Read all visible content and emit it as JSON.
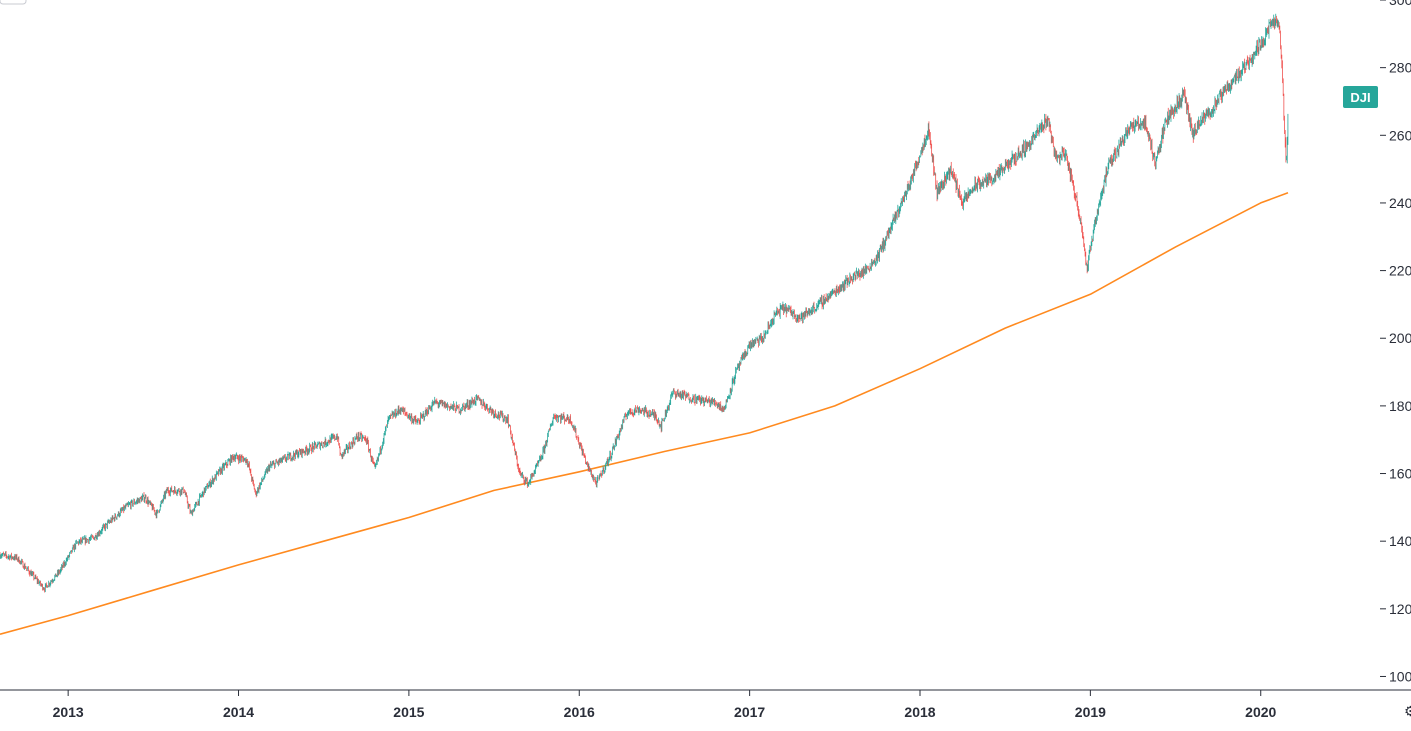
{
  "chart_data": {
    "type": "candlestick-with-line",
    "symbol_label": "DJI",
    "colors": {
      "up": "#26a69a",
      "down": "#ef5350",
      "moving_average": "#ff8a1f",
      "label_bg": "#26a69a"
    },
    "y_axis": {
      "ylim": [
        9600,
        30000
      ],
      "ticks": [
        {
          "value": 10000,
          "label": "100"
        },
        {
          "value": 12000,
          "label": "120"
        },
        {
          "value": 14000,
          "label": "140"
        },
        {
          "value": 16000,
          "label": "160"
        },
        {
          "value": 18000,
          "label": "180"
        },
        {
          "value": 20000,
          "label": "200"
        },
        {
          "value": 22000,
          "label": "220"
        },
        {
          "value": 24000,
          "label": "240"
        },
        {
          "value": 26000,
          "label": "260"
        },
        {
          "value": 28000,
          "label": "280"
        },
        {
          "value": 30000,
          "label": "300"
        }
      ]
    },
    "x_axis": {
      "xlim": [
        2012.6,
        2020.7
      ],
      "ticks": [
        {
          "value": 2013,
          "label": "2013"
        },
        {
          "value": 2014,
          "label": "2014"
        },
        {
          "value": 2015,
          "label": "2015"
        },
        {
          "value": 2016,
          "label": "2016"
        },
        {
          "value": 2017,
          "label": "2017"
        },
        {
          "value": 2018,
          "label": "2018"
        },
        {
          "value": 2019,
          "label": "2019"
        },
        {
          "value": 2020,
          "label": "2020"
        }
      ]
    },
    "price_path": [
      [
        2012.6,
        13600
      ],
      [
        2012.7,
        13500
      ],
      [
        2012.78,
        13050
      ],
      [
        2012.86,
        12600
      ],
      [
        2012.95,
        13100
      ],
      [
        2013.05,
        13950
      ],
      [
        2013.15,
        14100
      ],
      [
        2013.25,
        14600
      ],
      [
        2013.35,
        15050
      ],
      [
        2013.45,
        15300
      ],
      [
        2013.52,
        14800
      ],
      [
        2013.58,
        15500
      ],
      [
        2013.68,
        15500
      ],
      [
        2013.72,
        14800
      ],
      [
        2013.8,
        15500
      ],
      [
        2013.88,
        16000
      ],
      [
        2013.97,
        16500
      ],
      [
        2014.05,
        16400
      ],
      [
        2014.1,
        15400
      ],
      [
        2014.18,
        16200
      ],
      [
        2014.3,
        16500
      ],
      [
        2014.4,
        16700
      ],
      [
        2014.5,
        16900
      ],
      [
        2014.58,
        17100
      ],
      [
        2014.6,
        16500
      ],
      [
        2014.7,
        17100
      ],
      [
        2014.75,
        17000
      ],
      [
        2014.8,
        16100
      ],
      [
        2014.88,
        17600
      ],
      [
        2014.95,
        17900
      ],
      [
        2015.05,
        17500
      ],
      [
        2015.15,
        18100
      ],
      [
        2015.3,
        17900
      ],
      [
        2015.4,
        18200
      ],
      [
        2015.5,
        17800
      ],
      [
        2015.58,
        17600
      ],
      [
        2015.65,
        16000
      ],
      [
        2015.7,
        15700
      ],
      [
        2015.78,
        16500
      ],
      [
        2015.85,
        17700
      ],
      [
        2015.95,
        17600
      ],
      [
        2016.05,
        16200
      ],
      [
        2016.1,
        15700
      ],
      [
        2016.18,
        16500
      ],
      [
        2016.28,
        17800
      ],
      [
        2016.35,
        17900
      ],
      [
        2016.45,
        17700
      ],
      [
        2016.48,
        17400
      ],
      [
        2016.55,
        18400
      ],
      [
        2016.68,
        18200
      ],
      [
        2016.8,
        18100
      ],
      [
        2016.85,
        17900
      ],
      [
        2016.92,
        19000
      ],
      [
        2017.0,
        19800
      ],
      [
        2017.08,
        20000
      ],
      [
        2017.15,
        20700
      ],
      [
        2017.2,
        20900
      ],
      [
        2017.3,
        20600
      ],
      [
        2017.38,
        20900
      ],
      [
        2017.48,
        21300
      ],
      [
        2017.6,
        21800
      ],
      [
        2017.68,
        22000
      ],
      [
        2017.75,
        22400
      ],
      [
        2017.85,
        23500
      ],
      [
        2017.95,
        24700
      ],
      [
        2018.05,
        26200
      ],
      [
        2018.1,
        24300
      ],
      [
        2018.18,
        25000
      ],
      [
        2018.25,
        24000
      ],
      [
        2018.32,
        24500
      ],
      [
        2018.45,
        24800
      ],
      [
        2018.55,
        25300
      ],
      [
        2018.65,
        25800
      ],
      [
        2018.75,
        26500
      ],
      [
        2018.8,
        25300
      ],
      [
        2018.85,
        25500
      ],
      [
        2018.9,
        24500
      ],
      [
        2018.95,
        23300
      ],
      [
        2018.98,
        22000
      ],
      [
        2019.02,
        23300
      ],
      [
        2019.1,
        25000
      ],
      [
        2019.22,
        26200
      ],
      [
        2019.32,
        26400
      ],
      [
        2019.38,
        25200
      ],
      [
        2019.45,
        26500
      ],
      [
        2019.55,
        27200
      ],
      [
        2019.6,
        26000
      ],
      [
        2019.65,
        26400
      ],
      [
        2019.72,
        26800
      ],
      [
        2019.8,
        27400
      ],
      [
        2019.9,
        28000
      ],
      [
        2020.0,
        28700
      ],
      [
        2020.05,
        29200
      ],
      [
        2020.1,
        29400
      ],
      [
        2020.12,
        28500
      ],
      [
        2020.14,
        26000
      ],
      [
        2020.15,
        25200
      ],
      [
        2020.16,
        26500
      ]
    ],
    "moving_average": [
      [
        2012.6,
        11250
      ],
      [
        2013.0,
        11800
      ],
      [
        2013.5,
        12550
      ],
      [
        2014.0,
        13300
      ],
      [
        2014.5,
        14000
      ],
      [
        2015.0,
        14700
      ],
      [
        2015.5,
        15500
      ],
      [
        2016.0,
        16050
      ],
      [
        2016.5,
        16650
      ],
      [
        2017.0,
        17200
      ],
      [
        2017.5,
        18000
      ],
      [
        2018.0,
        19100
      ],
      [
        2018.5,
        20300
      ],
      [
        2019.0,
        21300
      ],
      [
        2019.5,
        22700
      ],
      [
        2020.0,
        24000
      ],
      [
        2020.16,
        24300
      ]
    ]
  }
}
